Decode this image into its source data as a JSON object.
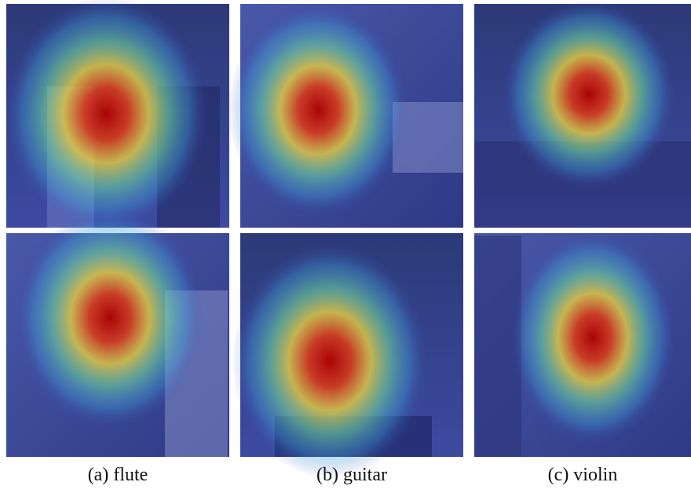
{
  "figure": {
    "captions": [
      "(a) flute",
      "(b) guitar",
      "(c) violin"
    ]
  }
}
